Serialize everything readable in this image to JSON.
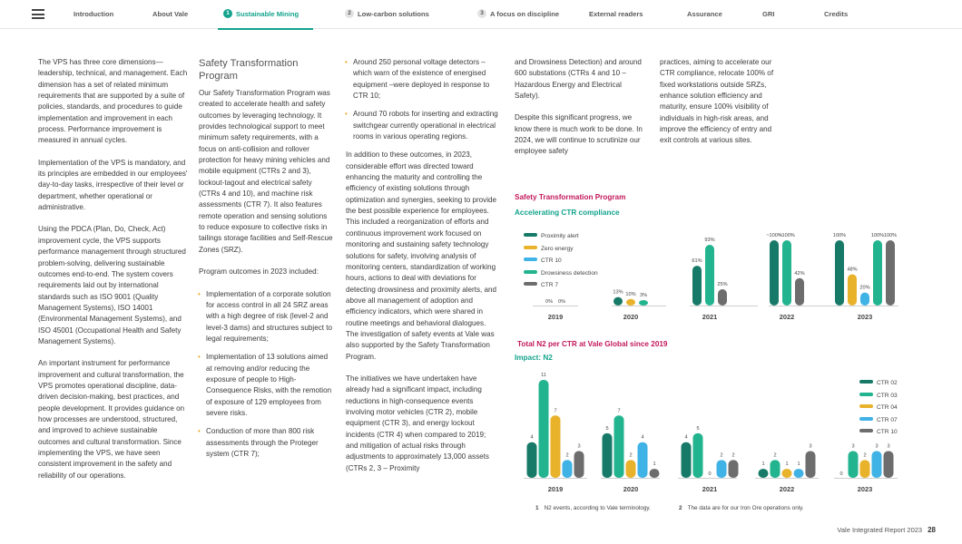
{
  "nav": {
    "items": [
      {
        "label": "Introduction"
      },
      {
        "label": "About Vale"
      },
      {
        "num": "1",
        "label": "Sustainable Mining"
      },
      {
        "num": "2",
        "label": "Low-carbon solutions"
      },
      {
        "num": "3",
        "label": "A focus on discipline"
      },
      {
        "label": "External readers"
      },
      {
        "label": "Assurance"
      },
      {
        "label": "GRI"
      },
      {
        "label": "Credits"
      }
    ]
  },
  "col1": {
    "p1": "The VPS has three core dimensions—leadership, technical, and management. Each dimension has a set of related minimum requirements that are supported by a suite of policies, standards, and procedures to guide implementation and improvement in each process. Performance improvement is measured in annual cycles.",
    "p2": "Implementation of the VPS is mandatory, and its principles are embedded in our employees' day-to-day tasks, irrespective of their level or department, whether operational or administrative.",
    "p3": "Using the PDCA (Plan, Do, Check, Act) improvement cycle, the VPS supports performance management through structured problem-solving, delivering sustainable outcomes end-to-end. The system covers requirements laid out by international standards such as ISO 9001 (Quality Management Systems), ISO 14001 (Environmental Management Systems), and ISO 45001 (Occupational Health and Safety Management Systems).",
    "p4": "An important instrument for performance improvement and cultural transformation, the VPS promotes operational discipline, data-driven decision-making, best practices, and people development. It provides guidance on how processes are understood, structured, and improved to achieve sustainable outcomes and cultural transformation. Since implementing the VPS, we have seen consistent improvement in the safety and reliability of our operations."
  },
  "col2": {
    "heading": "Safety Transformation Program",
    "p1": "Our Safety Transformation Program was created to accelerate health and safety outcomes by leveraging technology. It provides technological support to meet minimum safety requirements, with a focus on anti-collision and rollover protection for heavy mining vehicles and mobile equipment (CTRs 2 and 3), lockout-tagout and electrical safety (CTRs 4 and 10), and machine risk assessments (CTR 7). It also features remote operation and sensing solutions to reduce exposure to collective risks in tailings storage facilities and Self-Rescue Zones (SRZ).",
    "p2": "Program outcomes in 2023 included:",
    "b1": "Implementation of a corporate solution for access control in all 24 SRZ areas with a high degree of risk (level-2 and level-3 dams) and structures subject to legal requirements;",
    "b2": "Implementation of 13 solutions aimed at removing and/or reducing the exposure of people to High-Consequence Risks, with the remotion of exposure of 129 employees from severe risks.",
    "b3": "Conduction of more than 800 risk assessments through the Proteger system (CTR 7);"
  },
  "col3": {
    "b1": "Around 250 personal voltage detectors – which warn of the existence of energised equipment –were deployed in response to CTR 10;",
    "b2": "Around 70 robots for inserting and extracting switchgear currently operational in electrical rooms in various operating regions.",
    "p1": "In addition to these outcomes, in 2023, considerable effort was directed toward enhancing the maturity and controlling the efficiency of existing solutions through optimization and synergies, seeking to provide the best possible experience for employees. This included a reorganization of efforts and continuous improvement work focused on monitoring and sustaining safety technology solutions for safety, involving analysis of monitoring centers, standardization of working hours, actions to deal with deviations for detecting drowsiness and proximity alerts, and above all management of adoption and efficiency indicators, which were shared in routine meetings and behavioral dialogues. The investigation of safety events at Vale was also supported by the Safety Transformation Program.",
    "p2": "The initiatives we have undertaken have already had a significant impact, including reductions in high-consequence events involving motor vehicles (CTR 2), mobile equipment (CTR 3), and energy lockout incidents (CTR 4) when compared to 2019; and mitigation of actual risks through adjustments to approximately 13,000 assets (CTRs 2, 3 – Proximity"
  },
  "col4": {
    "p1": "and Drowsiness Detection) and around 600 substations (CTRs 4 and 10 – Hazardous Energy and Electrical Safety).",
    "p2": "Despite this significant progress, we know there is much work to be done. In 2024, we will continue to scrutinize our employee safety"
  },
  "col5": {
    "p1": "practices, aiming to accelerate our CTR compliance, relocate 100% of fixed workstations outside SRZs, enhance solution efficiency and maturity, ensure 100% visibility of individuals in high-risk areas, and improve the efficiency of entry and exit controls at various sites."
  },
  "chart1_header": {
    "title": "Safety Transformation Program",
    "subtitle": "Accelerating CTR compliance"
  },
  "chart2_header": {
    "title": "Total N2 per CTR at Vale Global since 2019",
    "subtitle": "Impact: N2"
  },
  "chart_data": [
    {
      "type": "bar",
      "title": "Safety Transformation Program",
      "subtitle": "Accelerating CTR compliance",
      "categories": [
        "2019",
        "2020",
        "2021",
        "2022",
        "2023"
      ],
      "ylim": [
        0,
        100
      ],
      "legend_position": "left",
      "series": [
        {
          "name": "Proximity alert",
          "color": "#177a68",
          "values": [
            0,
            13,
            61,
            100,
            100
          ],
          "labels": [
            "0%",
            "13%",
            "61%",
            "~100%",
            "100%"
          ]
        },
        {
          "name": "Zero energy",
          "color": "#e9b22b",
          "values": [
            0,
            10,
            null,
            null,
            48
          ],
          "labels": [
            "0%",
            "10%",
            "",
            "",
            "48%"
          ]
        },
        {
          "name": "CTR 10",
          "color": "#3fb2e6",
          "values": [
            null,
            null,
            null,
            null,
            20
          ],
          "labels": [
            "",
            "",
            "",
            "",
            "20%"
          ]
        },
        {
          "name": "Drowsiness detection",
          "color": "#22b48f",
          "values": [
            null,
            3,
            93,
            100,
            100
          ],
          "labels": [
            "",
            "3%",
            "93%",
            "~100%",
            "100%"
          ]
        },
        {
          "name": "CTR 7",
          "color": "#6d6d6d",
          "values": [
            null,
            null,
            25,
            42,
            100
          ],
          "labels": [
            "",
            "",
            "25%",
            "42%",
            "100%"
          ]
        }
      ]
    },
    {
      "type": "bar",
      "title": "Total N2 per CTR at Vale Global since 2019",
      "subtitle": "Impact: N2",
      "categories": [
        "2019",
        "2020",
        "2021",
        "2022",
        "2023"
      ],
      "ylim": [
        0,
        11
      ],
      "legend_position": "right",
      "series": [
        {
          "name": "CTR 02",
          "color": "#177a68",
          "values": [
            4,
            5,
            4,
            1,
            0
          ]
        },
        {
          "name": "CTR 03",
          "color": "#22b48f",
          "values": [
            11,
            7,
            5,
            2,
            3
          ]
        },
        {
          "name": "CTR 04",
          "color": "#e9b22b",
          "values": [
            7,
            2,
            0,
            1,
            2
          ]
        },
        {
          "name": "CTR 07",
          "color": "#3fb2e6",
          "values": [
            2,
            4,
            2,
            1,
            3
          ]
        },
        {
          "name": "CTR 10",
          "color": "#6d6d6d",
          "values": [
            3,
            1,
            2,
            3,
            3
          ]
        }
      ]
    }
  ],
  "footnotes": [
    {
      "num": "1",
      "text": "N2 events, according to Vale terminology."
    },
    {
      "num": "2",
      "text": "The data are for our Iron Ore operations only."
    }
  ],
  "footer": {
    "report": "Vale Integrated Report 2023",
    "page": "28"
  }
}
